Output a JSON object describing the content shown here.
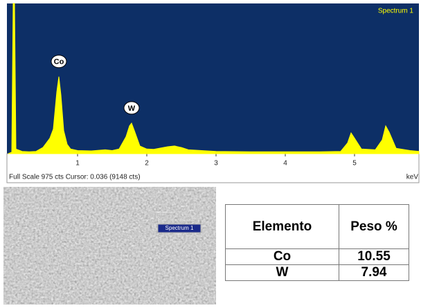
{
  "chart_data": {
    "type": "area",
    "title": "Spectrum 1",
    "x": [
      0,
      0.05,
      0.07,
      0.09,
      0.11,
      0.2,
      0.3,
      0.4,
      0.5,
      0.55,
      0.6,
      0.65,
      0.7,
      0.73,
      0.76,
      0.8,
      0.85,
      0.9,
      1.0,
      1.2,
      1.4,
      1.5,
      1.6,
      1.7,
      1.75,
      1.78,
      1.82,
      1.9,
      2.0,
      2.1,
      2.3,
      2.4,
      2.5,
      2.6,
      3.0,
      3.5,
      4.0,
      4.5,
      4.8,
      4.9,
      4.95,
      5.0,
      5.1,
      5.3,
      5.4,
      5.45,
      5.5,
      5.6,
      5.8,
      5.93
    ],
    "values": [
      0,
      10,
      975,
      975,
      30,
      15,
      12,
      15,
      40,
      70,
      100,
      160,
      400,
      500,
      380,
      150,
      60,
      30,
      20,
      18,
      25,
      20,
      30,
      110,
      180,
      198,
      150,
      50,
      30,
      28,
      45,
      50,
      40,
      25,
      15,
      12,
      12,
      12,
      15,
      70,
      135,
      100,
      30,
      25,
      90,
      180,
      140,
      35,
      20,
      15
    ],
    "color": "#ffff00",
    "xlim": [
      0,
      5.93
    ],
    "ylim": [
      0,
      975
    ],
    "xticks": [
      1,
      2,
      3,
      4,
      5
    ],
    "x_label": "keV",
    "status": "Full Scale 975 cts Cursor: 0.036  (9148 cts)",
    "annotations": [
      {
        "text": "Co",
        "x": 0.73
      },
      {
        "text": "W",
        "x": 1.78
      }
    ]
  },
  "image": {
    "label": "Spectrum 1"
  },
  "table": {
    "header": [
      "Elemento",
      "Peso %"
    ],
    "rows": [
      [
        "Co",
        10.55
      ],
      [
        "W",
        7.94
      ]
    ]
  }
}
